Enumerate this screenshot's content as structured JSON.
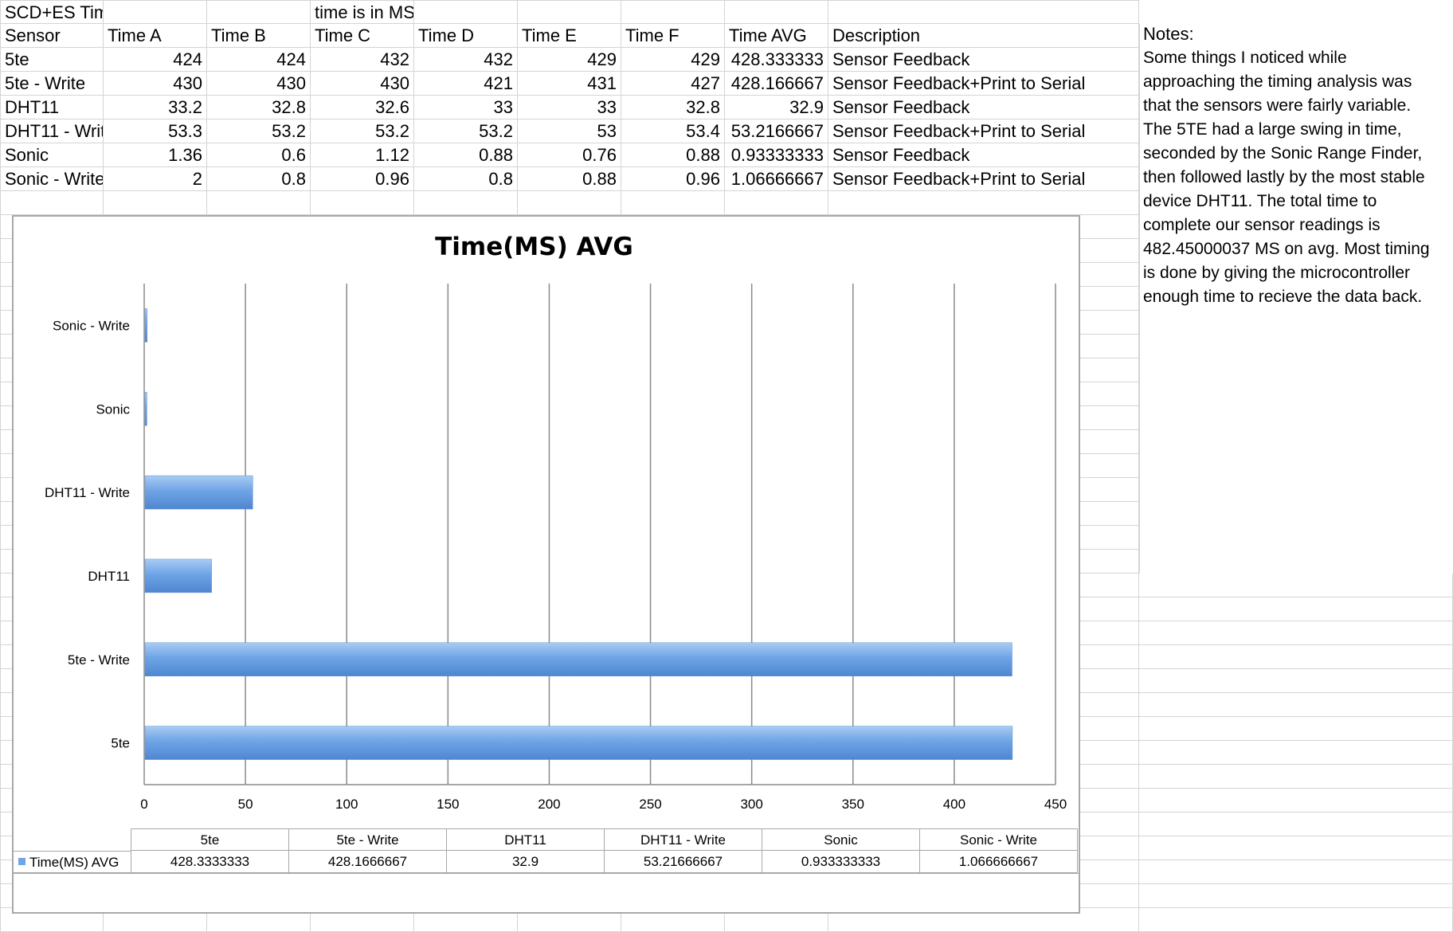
{
  "sheet": {
    "title": "SCD+ES Timing Analysis",
    "units_note": "time is in MS",
    "headers": [
      "Sensor",
      "Time A",
      "Time B",
      "Time C",
      "Time D",
      "Time E",
      "Time F",
      "Time AVG",
      "Description"
    ],
    "rows": [
      [
        "5te",
        "424",
        "424",
        "432",
        "432",
        "429",
        "429",
        "428.333333",
        "Sensor Feedback"
      ],
      [
        "5te - Write",
        "430",
        "430",
        "430",
        "421",
        "431",
        "427",
        "428.166667",
        "Sensor Feedback+Print to Serial"
      ],
      [
        "DHT11",
        "33.2",
        "32.8",
        "32.6",
        "33",
        "33",
        "32.8",
        "32.9",
        "Sensor Feedback"
      ],
      [
        "DHT11 - Writ",
        "53.3",
        "53.2",
        "53.2",
        "53.2",
        "53",
        "53.4",
        "53.2166667",
        "Sensor Feedback+Print to Serial"
      ],
      [
        "Sonic",
        "1.36",
        "0.6",
        "1.12",
        "0.88",
        "0.76",
        "0.88",
        "0.93333333",
        "Sensor Feedback"
      ],
      [
        "Sonic - Write",
        "2",
        "0.8",
        "0.96",
        "0.8",
        "0.88",
        "0.96",
        "1.06666667",
        "Sensor Feedback+Print to Serial"
      ]
    ],
    "notes_title": "Notes:",
    "notes_text": "Some things I noticed while\napproaching the timing analysis was\nthat the sensors were fairly variable.\nThe 5TE had a large swing in time,\nseconded by the Sonic Range Finder,\nthen followed lastly by the most stable\ndevice DHT11. The total time to\ncomplete our sensor readings is\n482.45000037 MS on avg. Most timing\nis done by giving the microcontroller\nenough time to recieve the data back."
  },
  "chart_data": {
    "type": "bar",
    "orientation": "horizontal",
    "title": "Time(MS) AVG",
    "xlabel": "",
    "ylabel": "",
    "categories": [
      "5te",
      "5te - Write",
      "DHT11",
      "DHT11 - Write",
      "Sonic",
      "Sonic - Write"
    ],
    "series": [
      {
        "name": "Time(MS) AVG",
        "values": [
          428.3333333,
          428.1666667,
          32.9,
          53.21666667,
          0.933333333,
          1.066666667
        ]
      }
    ],
    "value_labels": [
      "428.3333333",
      "428.1666667",
      "32.9",
      "53.21666667",
      "0.933333333",
      "1.066666667"
    ],
    "xlim": [
      0,
      450
    ],
    "xticks": [
      0,
      50,
      100,
      150,
      200,
      250,
      300,
      350,
      400,
      450
    ],
    "grid": "vertical",
    "legend": "data-table",
    "bar_color": "#6fa4e6"
  }
}
